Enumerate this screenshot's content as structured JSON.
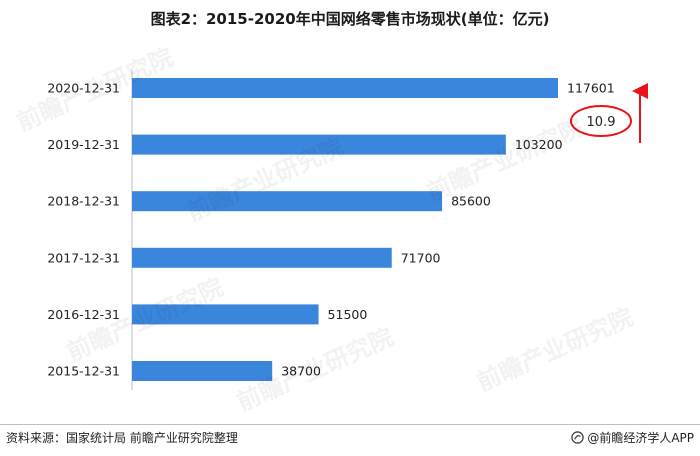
{
  "title": "图表2：2015-2020年中国网络零售市场现状(单位：亿元)",
  "footer": {
    "source": "资料来源：国家统计局 前瞻产业研究院整理",
    "brand": "@前瞻经济学人APP",
    "brand_icon": "qianzhan-logo-icon"
  },
  "watermark_text": "前瞻产业研究院",
  "colors": {
    "bar": "#3b86dd",
    "highlight": "#e8131b"
  },
  "annotation": {
    "growth_label": "10.9"
  },
  "chart_data": {
    "type": "bar",
    "orientation": "horizontal",
    "categories": [
      "2020-12-31",
      "2019-12-31",
      "2018-12-31",
      "2017-12-31",
      "2016-12-31",
      "2015-12-31"
    ],
    "values": [
      117601,
      103200,
      85600,
      71700,
      51500,
      38700
    ],
    "title": "图表2：2015-2020年中国网络零售市场现状(单位：亿元)",
    "xlabel": "",
    "ylabel": "",
    "xlim": [
      0,
      120000
    ],
    "grid": false,
    "legend": "none"
  }
}
